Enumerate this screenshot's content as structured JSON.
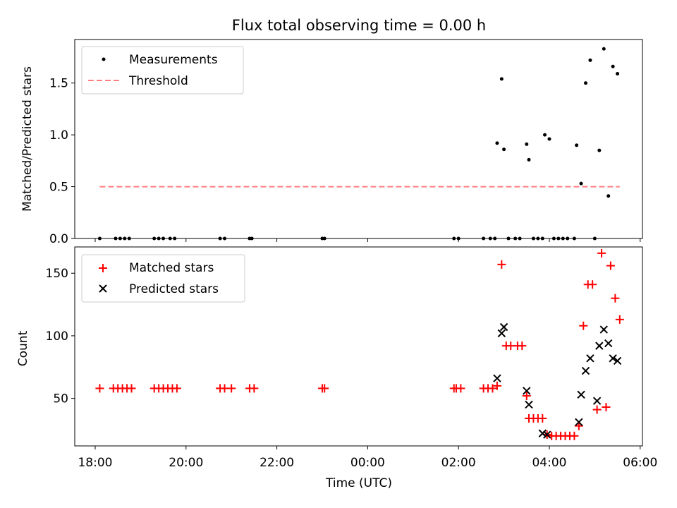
{
  "chart_data": [
    {
      "type": "scatter",
      "title": "Flux total observing time = 0.00 h",
      "xlabel": "",
      "ylabel": "Matched/Predicted stars",
      "xlim": [
        17.55,
        30.05
      ],
      "ylim": [
        0,
        1.92
      ],
      "yticks": [
        0.0,
        0.5,
        1.0,
        1.5
      ],
      "ytick_labels": [
        "0.0",
        "0.5",
        "1.0",
        "1.5"
      ],
      "legend": {
        "location": "top-left",
        "items": [
          {
            "label": "Measurements",
            "marker": "dot",
            "color": "#000000"
          },
          {
            "label": "Threshold",
            "marker": "dashed-line",
            "color": "#ff7f7f"
          }
        ]
      },
      "threshold": {
        "y": 0.5,
        "x_start": 18.1,
        "x_end": 29.55,
        "color": "#ff7f7f"
      },
      "series": [
        {
          "name": "Measurements",
          "color": "#000000",
          "x": [
            18.1,
            18.45,
            18.55,
            18.65,
            18.75,
            19.3,
            19.4,
            19.5,
            19.65,
            19.75,
            20.75,
            20.85,
            21.4,
            21.45,
            23.0,
            23.05,
            25.9,
            26.0,
            26.55,
            26.7,
            26.8,
            26.85,
            26.95,
            27.0,
            27.1,
            27.25,
            27.35,
            27.5,
            27.55,
            27.65,
            27.75,
            27.85,
            27.9,
            28.0,
            28.1,
            28.2,
            28.3,
            28.4,
            28.55,
            28.6,
            28.7,
            28.8,
            28.9,
            29.0,
            29.1,
            29.2,
            29.3,
            29.4,
            29.5
          ],
          "y": [
            0,
            0,
            0,
            0,
            0,
            0,
            0,
            0,
            0,
            0,
            0,
            0,
            0,
            0,
            0,
            0,
            0,
            0,
            0,
            0,
            0,
            0.92,
            1.54,
            0.86,
            0,
            0,
            0,
            0.91,
            0.76,
            0,
            0,
            0,
            1.0,
            0.96,
            0,
            0,
            0,
            0,
            0,
            0.9,
            0.53,
            1.5,
            1.72,
            0,
            0.85,
            1.83,
            0.41,
            1.66,
            1.59
          ]
        }
      ]
    },
    {
      "type": "scatter",
      "title": "",
      "xlabel": "Time (UTC)",
      "ylabel": "Count",
      "xlim": [
        17.55,
        30.05
      ],
      "ylim": [
        12,
        171
      ],
      "yticks": [
        50,
        100,
        150
      ],
      "ytick_labels": [
        "50",
        "100",
        "150"
      ],
      "xticks": [
        18,
        20,
        22,
        24,
        26,
        28,
        30
      ],
      "xtick_labels": [
        "18:00",
        "20:00",
        "22:00",
        "00:00",
        "02:00",
        "04:00",
        "06:00"
      ],
      "legend": {
        "location": "top-left",
        "items": [
          {
            "label": "Matched stars",
            "marker": "plus",
            "color": "#ff0000"
          },
          {
            "label": "Predicted stars",
            "marker": "x",
            "color": "#000000"
          }
        ]
      },
      "series": [
        {
          "name": "Matched stars",
          "marker": "plus",
          "color": "#ff0000",
          "x": [
            18.1,
            18.4,
            18.5,
            18.6,
            18.7,
            18.8,
            19.3,
            19.4,
            19.5,
            19.6,
            19.7,
            19.8,
            20.75,
            20.85,
            21.0,
            21.4,
            21.5,
            23.0,
            23.05,
            25.9,
            25.95,
            26.05,
            26.55,
            26.65,
            26.75,
            26.85,
            26.95,
            27.05,
            27.15,
            27.3,
            27.4,
            27.5,
            27.55,
            27.65,
            27.75,
            27.85,
            27.95,
            28.05,
            28.15,
            28.25,
            28.35,
            28.45,
            28.55,
            28.65,
            28.75,
            28.85,
            28.95,
            29.05,
            29.15,
            29.25,
            29.35,
            29.45,
            29.55
          ],
          "y": [
            58,
            58,
            58,
            58,
            58,
            58,
            58,
            58,
            58,
            58,
            58,
            58,
            58,
            58,
            58,
            58,
            58,
            58,
            58,
            58,
            58,
            58,
            58,
            58,
            58,
            60,
            157,
            92,
            92,
            92,
            92,
            52,
            34,
            34,
            34,
            34,
            21,
            20,
            20,
            20,
            20,
            20,
            20,
            28,
            108,
            141,
            141,
            41,
            166,
            43,
            156,
            130,
            113
          ]
        },
        {
          "name": "Predicted stars",
          "marker": "x",
          "color": "#000000",
          "x": [
            26.85,
            26.95,
            27.0,
            27.5,
            27.55,
            27.85,
            27.95,
            28.65,
            28.7,
            28.8,
            28.9,
            29.05,
            29.1,
            29.2,
            29.3,
            29.4,
            29.5
          ],
          "y": [
            66,
            102,
            107,
            56,
            45,
            22,
            21,
            31,
            53,
            72,
            82,
            48,
            92,
            105,
            94,
            82,
            80
          ]
        }
      ]
    }
  ]
}
